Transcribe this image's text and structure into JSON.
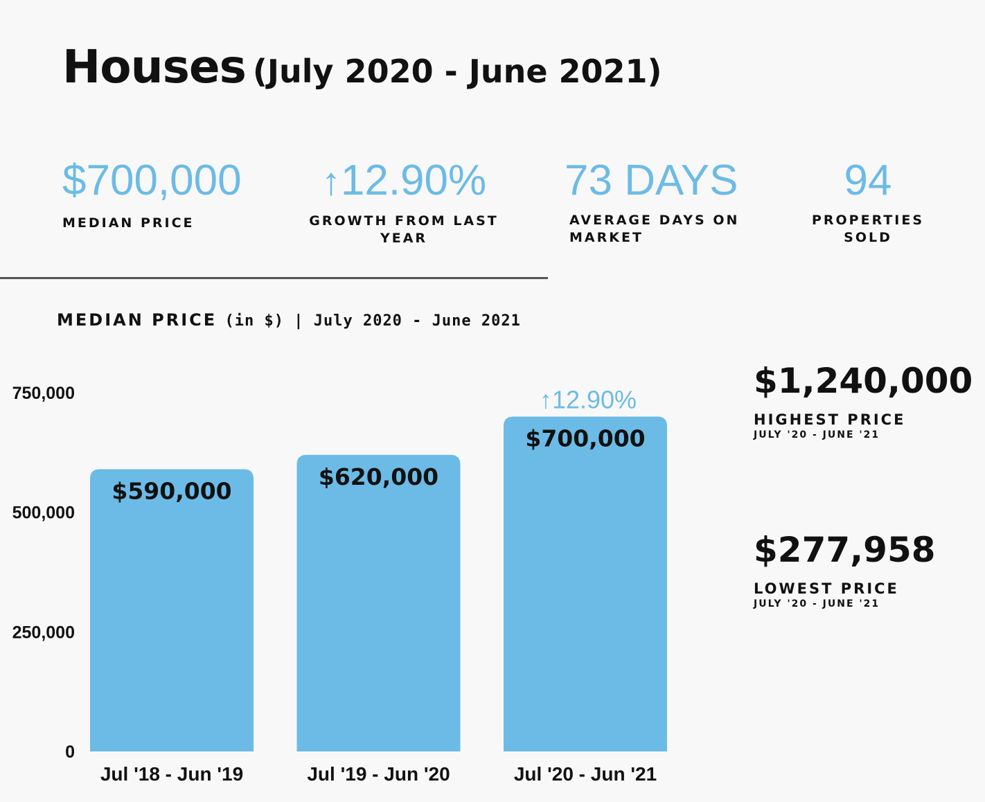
{
  "title": {
    "main": "Houses",
    "sub": "(July 2020 - June 2021)"
  },
  "stats": [
    {
      "value": "$700,000",
      "label": "MEDIAN PRICE"
    },
    {
      "arrow": "↑",
      "value": "12.90%",
      "label": "GROWTH FROM LAST YEAR"
    },
    {
      "value": "73 DAYS",
      "label": "AVERAGE DAYS ON MARKET"
    },
    {
      "value": "94",
      "label": "PROPERTIES SOLD"
    }
  ],
  "chart_data": {
    "type": "bar",
    "title": "MEDIAN PRICE",
    "title_suffix": "(in $) | July 2020 - June 2021",
    "categories": [
      "Jul '18 - Jun '19",
      "Jul '19 - Jun '20",
      "Jul '20 - Jun '21"
    ],
    "values": [
      590000,
      620000,
      700000
    ],
    "data_labels": [
      "$590,000",
      "$620,000",
      "$700,000"
    ],
    "yticks": [
      0,
      250000,
      500000,
      750000
    ],
    "ytick_labels": [
      "0",
      "250,000",
      "500,000",
      "750,000"
    ],
    "ylim": [
      0,
      750000
    ],
    "annotation": {
      "category_index": 2,
      "arrow": "↑",
      "text": "12.90%"
    },
    "bar_color": "#6cbbe6",
    "grid": false
  },
  "side": {
    "highest": {
      "amount": "$1,240,000",
      "label": "HIGHEST PRICE",
      "range": "JULY '20 - JUNE '21"
    },
    "lowest": {
      "amount": "$277,958",
      "label": "LOWEST PRICE",
      "range": "JULY '20 - JUNE '21"
    }
  },
  "colors": {
    "accent": "#6cbbe6",
    "background": "#f8f8f8",
    "text": "#111111"
  }
}
